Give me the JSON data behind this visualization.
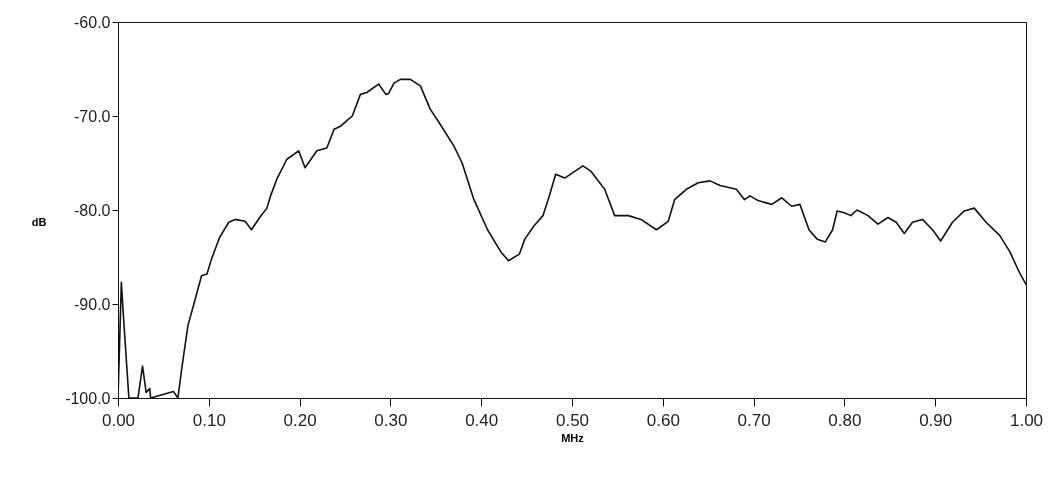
{
  "chart_data": {
    "type": "line",
    "xlabel": "MHz",
    "ylabel": "dB",
    "xlim": [
      0,
      1
    ],
    "ylim": [
      -100,
      -60
    ],
    "xticks": [
      {
        "value": 0,
        "label": "0.00"
      },
      {
        "value": 0.1,
        "label": "0.10"
      },
      {
        "value": 0.2,
        "label": "0.20"
      },
      {
        "value": 0.3,
        "label": "0.30"
      },
      {
        "value": 0.4,
        "label": "0.40"
      },
      {
        "value": 0.5,
        "label": "0.50"
      },
      {
        "value": 0.6,
        "label": "0.60"
      },
      {
        "value": 0.7,
        "label": "0.70"
      },
      {
        "value": 0.8,
        "label": "0.80"
      },
      {
        "value": 0.9,
        "label": "0.90"
      },
      {
        "value": 1,
        "label": "1.00"
      }
    ],
    "yticks": [
      {
        "value": -100,
        "label": "-100.0"
      },
      {
        "value": -90,
        "label": "-90.0"
      },
      {
        "value": -80,
        "label": "-80.0"
      },
      {
        "value": -70,
        "label": "-70.0"
      },
      {
        "value": -60,
        "label": "-60.0"
      }
    ],
    "grid": false,
    "marker": "none",
    "line_style": "solid",
    "series": [
      {
        "color": "#111111",
        "x": [
          0,
          0.0037,
          0.0055,
          0.012,
          0.022,
          0.027,
          0.031,
          0.035,
          0.036,
          0.061,
          0.066,
          0.07,
          0.077,
          0.085,
          0.092,
          0.098,
          0.103,
          0.112,
          0.122,
          0.129,
          0.14,
          0.147,
          0.156,
          0.164,
          0.168,
          0.175,
          0.186,
          0.199,
          0.206,
          0.219,
          0.23,
          0.238,
          0.245,
          0.252,
          0.258,
          0.267,
          0.274,
          0.287,
          0.295,
          0.298,
          0.304,
          0.311,
          0.322,
          0.333,
          0.344,
          0.355,
          0.37,
          0.379,
          0.392,
          0.407,
          0.422,
          0.43,
          0.442,
          0.448,
          0.458,
          0.468,
          0.475,
          0.482,
          0.492,
          0.512,
          0.521,
          0.536,
          0.547,
          0.562,
          0.576,
          0.593,
          0.606,
          0.613,
          0.626,
          0.639,
          0.652,
          0.663,
          0.681,
          0.69,
          0.696,
          0.705,
          0.72,
          0.731,
          0.742,
          0.751,
          0.761,
          0.77,
          0.779,
          0.787,
          0.792,
          0.8,
          0.807,
          0.814,
          0.826,
          0.837,
          0.848,
          0.857,
          0.866,
          0.875,
          0.886,
          0.897,
          0.906,
          0.919,
          0.932,
          0.943,
          0.956,
          0.971,
          0.982,
          0.993,
          1
        ],
        "values": [
          -100,
          -87.7,
          -90.6,
          -100,
          -100,
          -96.6,
          -99.4,
          -99,
          -100,
          -99.3,
          -100,
          -97,
          -92.3,
          -89.5,
          -87,
          -86.8,
          -85.2,
          -82.9,
          -81.3,
          -81,
          -81.2,
          -82.1,
          -80.8,
          -79.8,
          -78.5,
          -76.7,
          -74.6,
          -73.7,
          -75.5,
          -73.7,
          -73.4,
          -71.4,
          -71.1,
          -70.5,
          -70,
          -67.7,
          -67.5,
          -66.6,
          -67.7,
          -67.6,
          -66.5,
          -66.1,
          -66.1,
          -66.8,
          -69.3,
          -70.9,
          -73.2,
          -75,
          -78.9,
          -82.1,
          -84.5,
          -85.4,
          -84.7,
          -83.1,
          -81.7,
          -80.6,
          -78.5,
          -76.2,
          -76.6,
          -75.3,
          -75.9,
          -77.8,
          -80.6,
          -80.6,
          -81,
          -82.1,
          -81.2,
          -78.9,
          -77.8,
          -77.1,
          -76.9,
          -77.4,
          -77.8,
          -78.9,
          -78.5,
          -79,
          -79.4,
          -78.7,
          -79.6,
          -79.4,
          -82.1,
          -83.1,
          -83.4,
          -82.1,
          -80.1,
          -80.3,
          -80.6,
          -80,
          -80.6,
          -81.5,
          -80.8,
          -81.3,
          -82.5,
          -81.3,
          -81,
          -82.1,
          -83.3,
          -81.3,
          -80.1,
          -79.8,
          -81.3,
          -82.7,
          -84.4,
          -86.7,
          -87.9
        ]
      }
    ]
  }
}
